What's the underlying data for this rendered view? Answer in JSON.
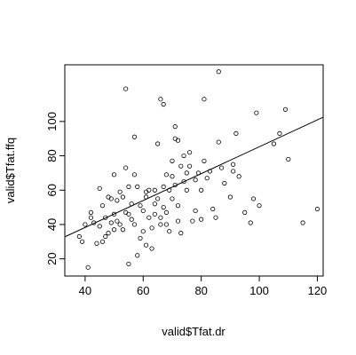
{
  "chart_data": {
    "type": "scatter",
    "title": "",
    "xlabel": "valid$Tfat.dr",
    "ylabel": "valid$Tfat.ffq",
    "xlim": [
      33,
      122
    ],
    "ylim": [
      10,
      133
    ],
    "xticks": [
      40,
      60,
      80,
      100,
      120
    ],
    "yticks": [
      20,
      40,
      60,
      80,
      100
    ],
    "grid": false,
    "regression_line": {
      "x": [
        33,
        122
      ],
      "y": [
        32.8,
        102.5
      ]
    },
    "x": [
      38,
      39,
      40,
      41,
      42,
      42,
      43,
      44,
      45,
      45,
      46,
      46,
      47,
      47,
      48,
      48,
      49,
      49,
      50,
      50,
      50,
      51,
      51,
      52,
      52,
      53,
      53,
      54,
      54,
      55,
      55,
      55,
      56,
      56,
      57,
      57,
      58,
      58,
      59,
      59,
      60,
      60,
      61,
      61,
      62,
      62,
      63,
      63,
      64,
      64,
      65,
      65,
      66,
      66,
      66,
      67,
      67,
      68,
      68,
      68,
      69,
      69,
      70,
      70,
      70,
      71,
      71,
      72,
      72,
      72,
      73,
      73,
      74,
      74,
      75,
      75,
      76,
      77,
      78,
      78,
      79,
      80,
      80,
      81,
      82,
      83,
      84,
      85,
      86,
      87,
      88,
      90,
      91,
      92,
      93,
      95,
      97,
      98,
      99,
      100,
      105,
      107,
      109,
      110,
      115,
      120,
      54,
      67,
      86,
      57,
      64,
      76,
      81,
      71,
      61,
      91
    ],
    "y": [
      33,
      30,
      40,
      15,
      47,
      44,
      41,
      29,
      39,
      61,
      30,
      51,
      44,
      33,
      35,
      56,
      55,
      41,
      46,
      69,
      37,
      54,
      42,
      40,
      59,
      56,
      37,
      47,
      73,
      46,
      17,
      62,
      52,
      43,
      69,
      40,
      22,
      62,
      32,
      51,
      48,
      36,
      28,
      56,
      60,
      44,
      38,
      26,
      46,
      60,
      87,
      55,
      44,
      40,
      113,
      62,
      50,
      69,
      47,
      40,
      36,
      60,
      68,
      55,
      77,
      97,
      63,
      89,
      42,
      51,
      35,
      74,
      80,
      65,
      70,
      60,
      74,
      42,
      66,
      48,
      70,
      60,
      43,
      113,
      67,
      71,
      49,
      44,
      129,
      73,
      64,
      56,
      75,
      93,
      68,
      47,
      41,
      55,
      105,
      51,
      87,
      93,
      107,
      78,
      41,
      49,
      119,
      110,
      88,
      91,
      52,
      82,
      77,
      90,
      59,
      71
    ]
  }
}
